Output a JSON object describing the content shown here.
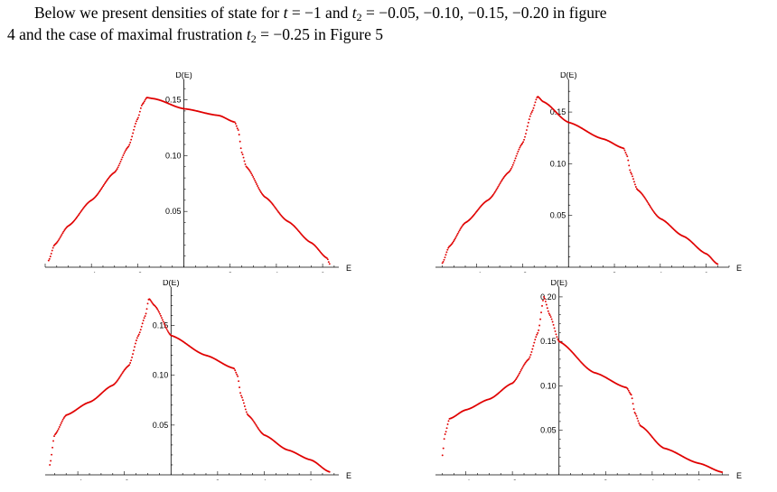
{
  "text": {
    "line1": {
      "a": "Below we present densities of state for ",
      "t": "t",
      "b": " = −1 and ",
      "t2": "t",
      "sub": "2",
      "c": " = −0.05, −0.10, −0.15, −0.20 in figure"
    },
    "line2": {
      "a": "4 and the case of maximal frustration ",
      "t": "t",
      "sub": "2",
      "b": " = −0.25 in Figure 5"
    }
  },
  "style": {
    "curve_color": "#e00000",
    "axis_color": "#000000"
  },
  "chart_data": [
    {
      "type": "scatter",
      "t2": -0.05,
      "xlabel": "E",
      "ylabel": "D(E)",
      "xlim": [
        -6.0,
        6.7
      ],
      "ylim": [
        0.0,
        0.165
      ],
      "xticks": [
        -4,
        -2,
        2,
        4,
        6
      ],
      "yticks": [
        0.05,
        0.1,
        0.15
      ],
      "yticklabels": [
        "0.05",
        "0.10",
        "0.15"
      ],
      "anchors": [
        [
          -5.85,
          0.006
        ],
        [
          -5.6,
          0.02
        ],
        [
          -5.0,
          0.037
        ],
        [
          -4.0,
          0.06
        ],
        [
          -3.0,
          0.085
        ],
        [
          -2.4,
          0.108
        ],
        [
          -2.0,
          0.133
        ],
        [
          -1.8,
          0.146
        ],
        [
          -1.6,
          0.152
        ],
        [
          -1.3,
          0.151
        ],
        [
          0.0,
          0.142
        ],
        [
          1.5,
          0.136
        ],
        [
          2.2,
          0.13
        ],
        [
          2.35,
          0.123
        ],
        [
          2.5,
          0.103
        ],
        [
          2.7,
          0.09
        ],
        [
          3.5,
          0.063
        ],
        [
          4.5,
          0.041
        ],
        [
          5.5,
          0.022
        ],
        [
          6.2,
          0.008
        ],
        [
          6.3,
          0.003
        ]
      ],
      "gap": [
        -1.6,
        2.2
      ]
    },
    {
      "type": "scatter",
      "t2": -0.1,
      "xlabel": "E",
      "ylabel": "D(E)",
      "xlim": [
        -5.8,
        7.0
      ],
      "ylim": [
        0.0,
        0.178
      ],
      "xticks": [
        -4,
        -2,
        2,
        4,
        6
      ],
      "yticks": [
        0.05,
        0.1,
        0.15
      ],
      "yticklabels": [
        "0.05",
        "0.10",
        "0.15"
      ],
      "anchors": [
        [
          -5.5,
          0.004
        ],
        [
          -5.2,
          0.02
        ],
        [
          -4.5,
          0.043
        ],
        [
          -3.5,
          0.065
        ],
        [
          -2.6,
          0.092
        ],
        [
          -2.0,
          0.12
        ],
        [
          -1.6,
          0.15
        ],
        [
          -1.35,
          0.165
        ],
        [
          -1.1,
          0.16
        ],
        [
          0.0,
          0.14
        ],
        [
          1.5,
          0.124
        ],
        [
          2.4,
          0.115
        ],
        [
          2.55,
          0.108
        ],
        [
          2.7,
          0.092
        ],
        [
          3.0,
          0.075
        ],
        [
          4.0,
          0.047
        ],
        [
          5.0,
          0.03
        ],
        [
          6.0,
          0.013
        ],
        [
          6.5,
          0.003
        ]
      ],
      "gap": [
        -1.35,
        2.4
      ]
    },
    {
      "type": "scatter",
      "t2": -0.15,
      "xlabel": "E",
      "ylabel": "D(E)",
      "xlim": [
        -5.4,
        7.2
      ],
      "ylim": [
        0.0,
        0.185
      ],
      "xticks": [
        -4,
        -2,
        2,
        4,
        6
      ],
      "yticks": [
        0.05,
        0.1,
        0.15
      ],
      "yticklabels": [
        "0.05",
        "0.10",
        "0.15"
      ],
      "anchors": [
        [
          -5.2,
          0.01
        ],
        [
          -5.0,
          0.04
        ],
        [
          -4.5,
          0.06
        ],
        [
          -3.5,
          0.073
        ],
        [
          -2.5,
          0.09
        ],
        [
          -1.8,
          0.11
        ],
        [
          -1.4,
          0.14
        ],
        [
          -1.1,
          0.16
        ],
        [
          -0.95,
          0.177
        ],
        [
          -0.7,
          0.17
        ],
        [
          0.0,
          0.14
        ],
        [
          1.5,
          0.12
        ],
        [
          2.7,
          0.107
        ],
        [
          2.85,
          0.1
        ],
        [
          3.0,
          0.08
        ],
        [
          3.3,
          0.06
        ],
        [
          4.0,
          0.04
        ],
        [
          5.0,
          0.025
        ],
        [
          6.0,
          0.015
        ],
        [
          6.8,
          0.003
        ]
      ],
      "gap": [
        -0.95,
        2.7
      ]
    },
    {
      "type": "scatter",
      "t2": -0.2,
      "xlabel": "E",
      "ylabel": "D(E)",
      "xlim": [
        -5.3,
        7.3
      ],
      "ylim": [
        0.0,
        0.207
      ],
      "xticks": [
        -4,
        -2,
        2,
        4,
        6
      ],
      "yticks": [
        0.05,
        0.1,
        0.15,
        0.2
      ],
      "yticklabels": [
        "0.05",
        "0.10",
        "0.15",
        "0.20"
      ],
      "anchors": [
        [
          -5.0,
          0.022
        ],
        [
          -4.9,
          0.045
        ],
        [
          -4.7,
          0.063
        ],
        [
          -4.0,
          0.073
        ],
        [
          -3.0,
          0.085
        ],
        [
          -2.0,
          0.103
        ],
        [
          -1.3,
          0.13
        ],
        [
          -0.9,
          0.16
        ],
        [
          -0.65,
          0.2
        ],
        [
          -0.4,
          0.18
        ],
        [
          0.0,
          0.15
        ],
        [
          1.5,
          0.115
        ],
        [
          2.9,
          0.098
        ],
        [
          3.1,
          0.09
        ],
        [
          3.25,
          0.07
        ],
        [
          3.5,
          0.055
        ],
        [
          4.5,
          0.03
        ],
        [
          6.0,
          0.013
        ],
        [
          7.0,
          0.003
        ]
      ],
      "gap": [
        -0.65,
        2.9
      ]
    }
  ]
}
